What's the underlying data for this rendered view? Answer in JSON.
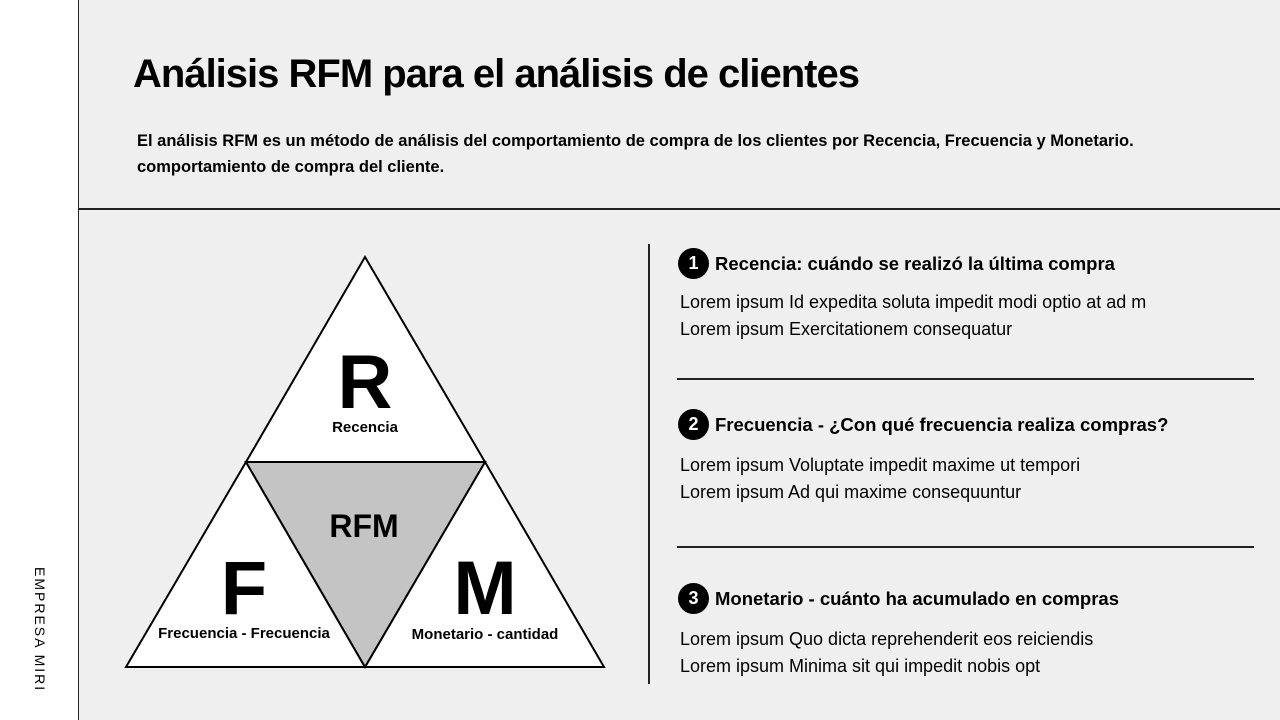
{
  "brand": "EMPRESA MIRI",
  "title": "Análisis RFM para el análisis de clientes",
  "description": [
    "El análisis RFM es un método de análisis del comportamiento de compra de los clientes por Recencia, Frecuencia y Monetario.",
    "comportamiento de compra del cliente."
  ],
  "diagram": {
    "top": {
      "letter": "R",
      "label": "Recencia"
    },
    "center": {
      "label": "RFM"
    },
    "left": {
      "letter": "F",
      "label": "Frecuencia - Frecuencia"
    },
    "right": {
      "letter": "M",
      "label": "Monetario - cantidad"
    },
    "center_color": "#c4c4c4"
  },
  "items": [
    {
      "num": "1",
      "title": "Recencia: cuándo se realizó la última compra",
      "lines": [
        "Lorem ipsum Id expedita soluta impedit modi optio at ad m",
        "Lorem ipsum Exercitationem consequatur"
      ]
    },
    {
      "num": "2",
      "title": "Frecuencia - ¿Con qué frecuencia realiza compras?",
      "lines": [
        "Lorem ipsum Voluptate impedit maxime ut tempori",
        "Lorem ipsum Ad qui maxime consequuntur"
      ]
    },
    {
      "num": "3",
      "title": "Monetario - cuánto ha acumulado en compras",
      "lines": [
        "Lorem ipsum Quo dicta reprehenderit eos reiciendis",
        "Lorem ipsum Minima sit qui impedit nobis opt"
      ]
    }
  ]
}
